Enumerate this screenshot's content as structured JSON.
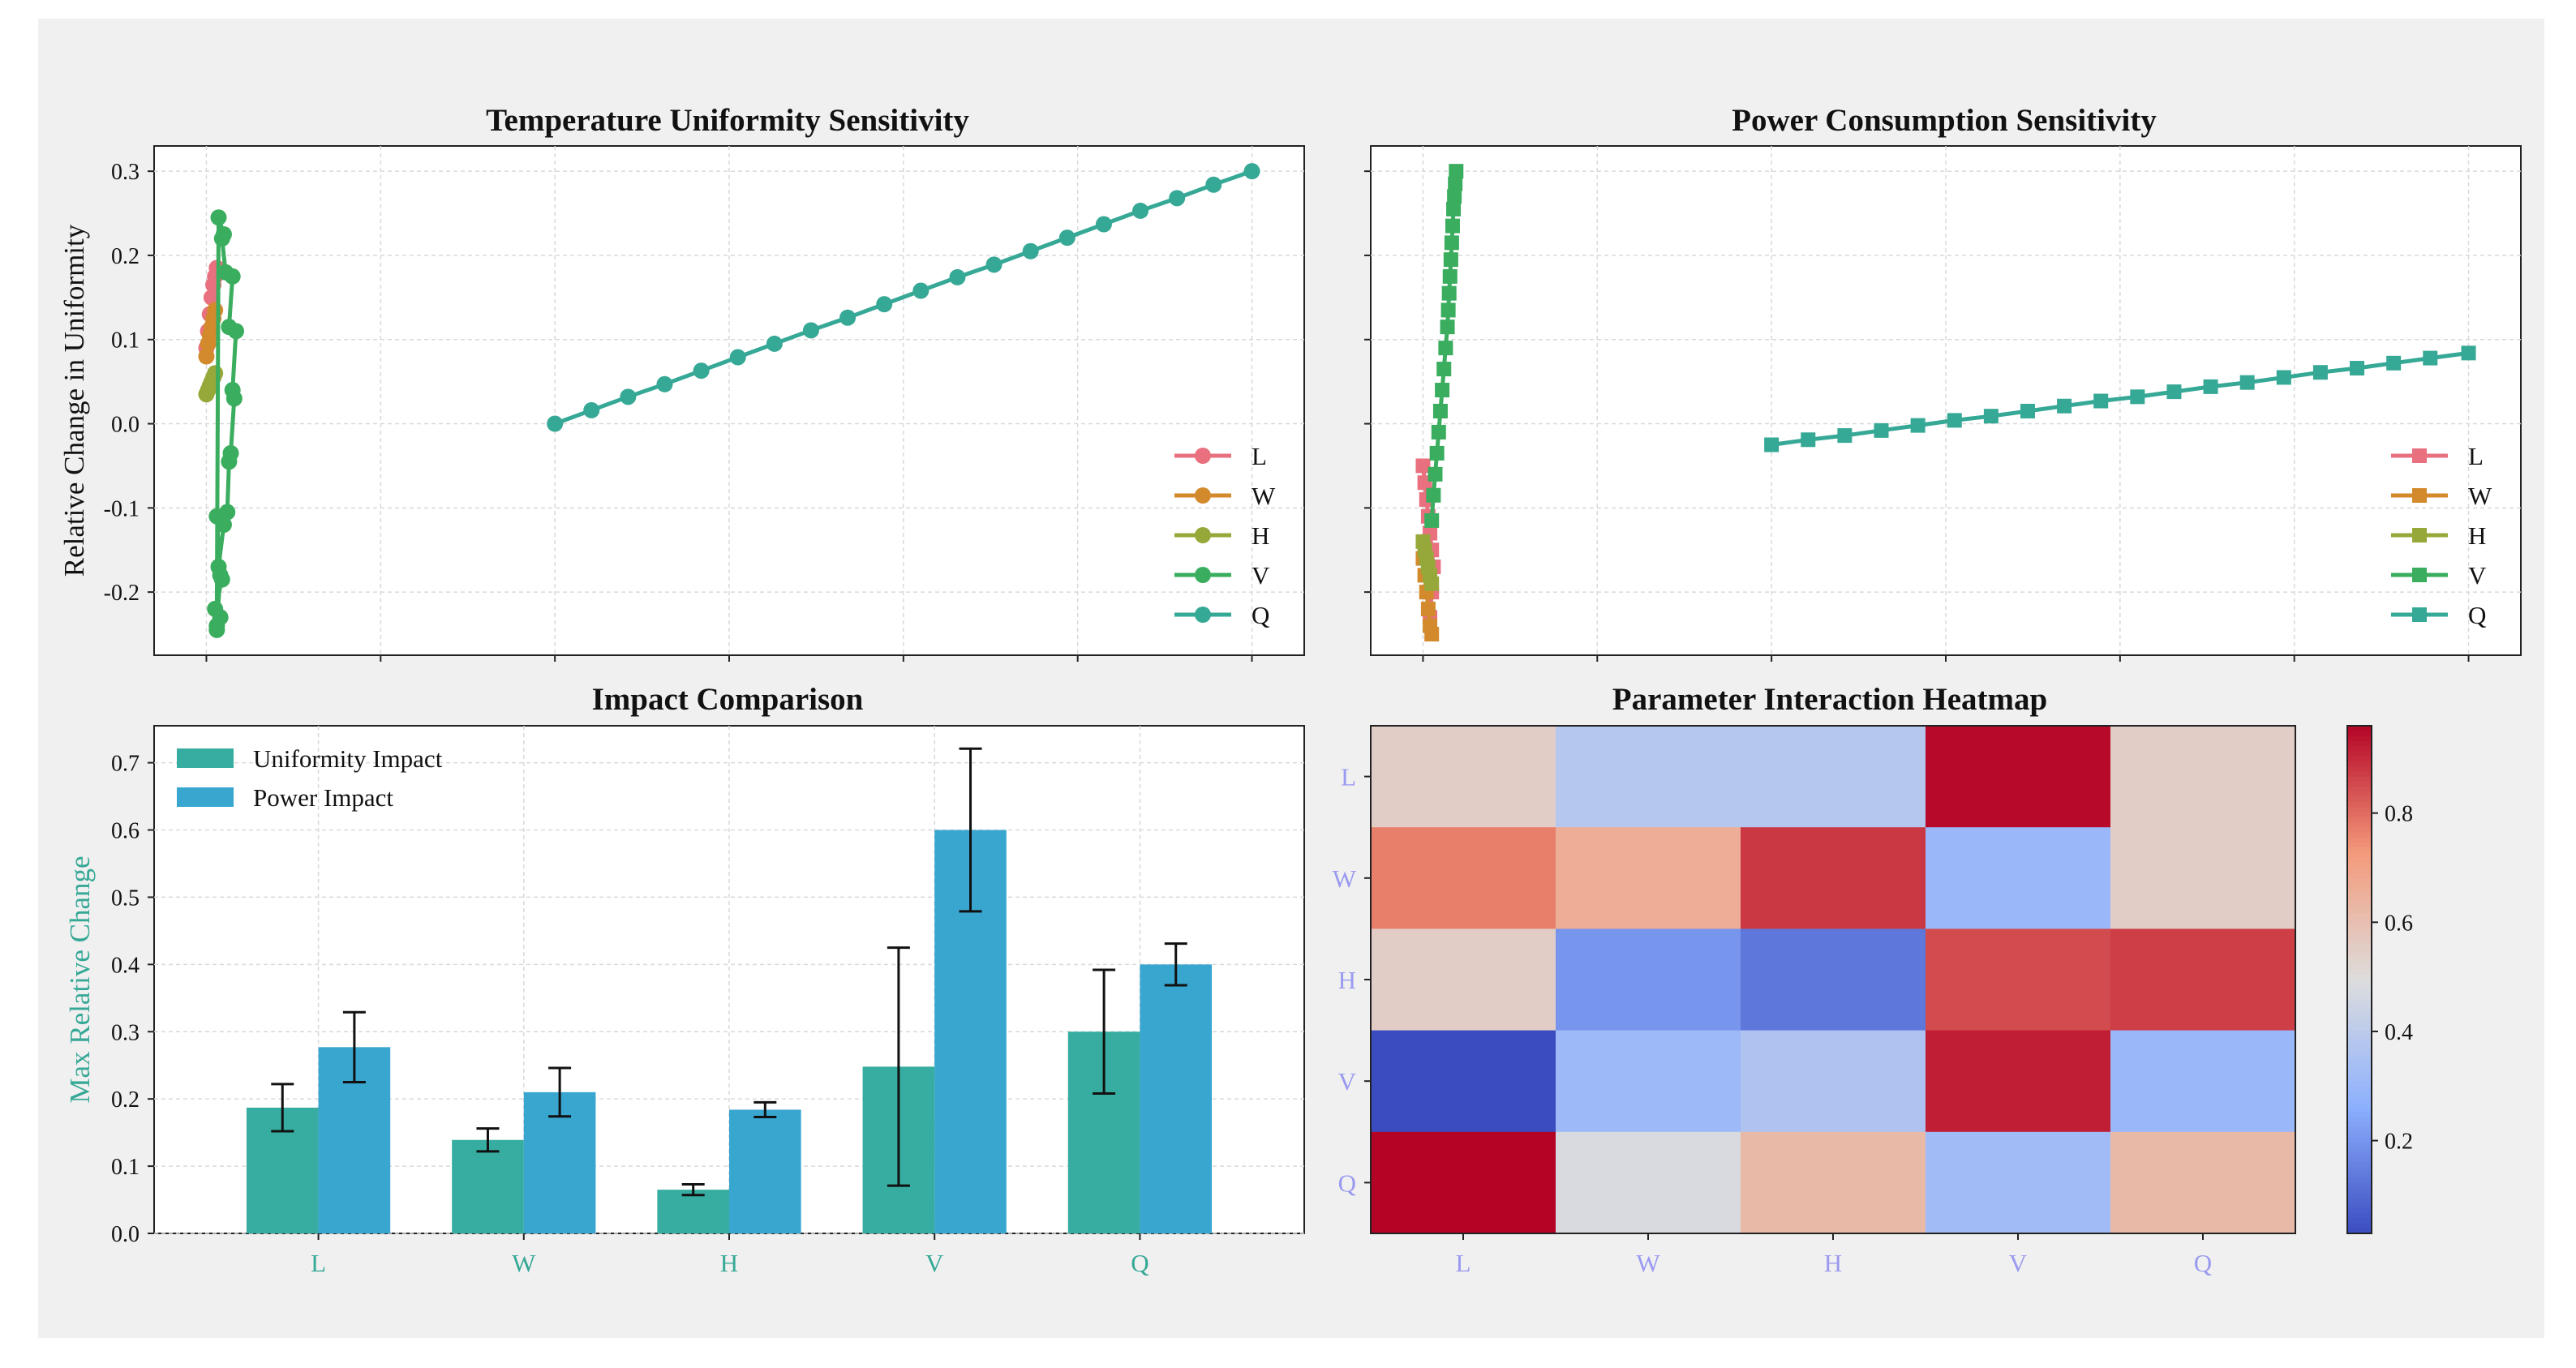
{
  "colors": {
    "background": "#f0f0f0",
    "grid": "#d9d9d9",
    "L": "#e8707f",
    "W": "#d38a2c",
    "H": "#97a83a",
    "V": "#3aad5e",
    "Q": "#36a896",
    "uniformity_bar": "#36ada0",
    "power_bar": "#39a6d0",
    "bar_axis_text": "#36a896",
    "heatmap_tick_text": "#9a9af0"
  },
  "chart_data": [
    {
      "type": "line",
      "title": "Temperature Uniformity Sensitivity",
      "xlabel": "",
      "ylabel": "Relative Change in Uniformity",
      "yticks": [
        "0.3",
        "0.2",
        "0.1",
        "0.0",
        "-0.1",
        "-0.2"
      ],
      "ytick_values": [
        0.3,
        0.2,
        0.1,
        0.0,
        -0.1,
        -0.2
      ],
      "xlim": [
        -0.3,
        6.3
      ],
      "ylim": [
        -0.275,
        0.33
      ],
      "marker": "circle",
      "legend_position": "lower-right",
      "legend": [
        "L",
        "W",
        "H",
        "V",
        "Q"
      ],
      "series": [
        {
          "name": "L",
          "color_key": "L",
          "x": [
            0.0,
            0.01,
            0.02,
            0.03,
            0.04,
            0.05,
            0.06
          ],
          "y": [
            0.09,
            0.11,
            0.13,
            0.15,
            0.165,
            0.175,
            0.185
          ]
        },
        {
          "name": "W",
          "color_key": "W",
          "x": [
            0.0,
            0.01,
            0.02,
            0.03,
            0.04,
            0.05
          ],
          "y": [
            0.08,
            0.095,
            0.105,
            0.115,
            0.125,
            0.135
          ]
        },
        {
          "name": "H",
          "color_key": "H",
          "x": [
            0.0,
            0.01,
            0.02,
            0.03,
            0.04,
            0.05
          ],
          "y": [
            0.035,
            0.04,
            0.045,
            0.05,
            0.055,
            0.06
          ]
        },
        {
          "name": "V",
          "color_key": "V",
          "x": [
            0.06,
            0.08,
            0.05,
            0.09,
            0.07,
            0.1,
            0.12,
            0.13,
            0.14,
            0.16,
            0.15,
            0.17,
            0.13,
            0.15,
            0.11,
            0.09,
            0.1,
            0.07,
            0.06,
            0.08,
            0.06
          ],
          "y": [
            -0.245,
            -0.23,
            -0.22,
            -0.185,
            -0.17,
            -0.12,
            -0.105,
            -0.045,
            -0.035,
            0.03,
            0.04,
            0.11,
            0.115,
            0.175,
            0.18,
            0.22,
            0.225,
            0.245,
            -0.24,
            -0.18,
            -0.11
          ]
        },
        {
          "name": "Q",
          "color_key": "Q",
          "x": [
            2.0,
            2.21,
            2.42,
            2.63,
            2.84,
            3.05,
            3.26,
            3.47,
            3.68,
            3.89,
            4.1,
            4.31,
            4.52,
            4.73,
            4.94,
            5.15,
            5.36,
            5.57,
            5.78,
            6.0
          ],
          "y": [
            0.0,
            0.016,
            0.032,
            0.047,
            0.063,
            0.079,
            0.095,
            0.111,
            0.126,
            0.142,
            0.158,
            0.174,
            0.189,
            0.205,
            0.221,
            0.237,
            0.253,
            0.268,
            0.284,
            0.3
          ]
        }
      ]
    },
    {
      "type": "line",
      "title": "Power Consumption Sensitivity",
      "xlabel": "",
      "ylabel": "",
      "xlim": [
        -0.3,
        6.3
      ],
      "ylim": [
        -0.275,
        0.33
      ],
      "marker": "square",
      "legend_position": "lower-right",
      "legend": [
        "L",
        "W",
        "H",
        "V",
        "Q"
      ],
      "series": [
        {
          "name": "L",
          "color_key": "L",
          "x": [
            0.0,
            0.01,
            0.02,
            0.03,
            0.04,
            0.05,
            0.06,
            0.05,
            0.04
          ],
          "y": [
            -0.05,
            -0.07,
            -0.09,
            -0.11,
            -0.13,
            -0.15,
            -0.17,
            -0.2,
            -0.23
          ]
        },
        {
          "name": "W",
          "color_key": "W",
          "x": [
            0.0,
            0.01,
            0.02,
            0.03,
            0.04,
            0.05
          ],
          "y": [
            -0.16,
            -0.18,
            -0.2,
            -0.22,
            -0.24,
            -0.25
          ]
        },
        {
          "name": "H",
          "color_key": "H",
          "x": [
            0.0,
            0.01,
            0.02,
            0.03,
            0.04,
            0.05
          ],
          "y": [
            -0.14,
            -0.15,
            -0.16,
            -0.17,
            -0.18,
            -0.19
          ]
        },
        {
          "name": "V",
          "color_key": "V",
          "x": [
            0.05,
            0.06,
            0.07,
            0.08,
            0.09,
            0.1,
            0.11,
            0.12,
            0.13,
            0.14,
            0.145,
            0.15,
            0.155,
            0.16,
            0.165,
            0.17,
            0.175,
            0.18,
            0.185,
            0.19
          ],
          "y": [
            -0.115,
            -0.085,
            -0.06,
            -0.035,
            -0.01,
            0.015,
            0.04,
            0.065,
            0.09,
            0.115,
            0.135,
            0.155,
            0.175,
            0.195,
            0.215,
            0.235,
            0.255,
            0.27,
            0.285,
            0.3
          ]
        },
        {
          "name": "Q",
          "color_key": "Q",
          "x": [
            2.0,
            2.21,
            2.42,
            2.63,
            2.84,
            3.05,
            3.26,
            3.47,
            3.68,
            3.89,
            4.1,
            4.31,
            4.52,
            4.73,
            4.94,
            5.15,
            5.36,
            5.57,
            5.78,
            6.0
          ],
          "y": [
            -0.025,
            -0.019,
            -0.014,
            -0.008,
            -0.002,
            0.004,
            0.009,
            0.015,
            0.021,
            0.027,
            0.032,
            0.038,
            0.044,
            0.049,
            0.055,
            0.061,
            0.066,
            0.072,
            0.078,
            0.084
          ]
        }
      ]
    },
    {
      "type": "bar",
      "title": "Impact Comparison",
      "xlabel": "",
      "ylabel": "Max Relative Change",
      "categories": [
        "L",
        "W",
        "H",
        "V",
        "Q"
      ],
      "yticks": [
        "0.0",
        "0.1",
        "0.2",
        "0.3",
        "0.4",
        "0.5",
        "0.6",
        "0.7"
      ],
      "ytick_values": [
        0,
        0.1,
        0.2,
        0.3,
        0.4,
        0.5,
        0.6,
        0.7
      ],
      "ylim": [
        0,
        0.755
      ],
      "legend_position": "top-left",
      "series": [
        {
          "name": "Uniformity Impact",
          "color_key": "uniformity_bar",
          "values": [
            0.187,
            0.139,
            0.065,
            0.248,
            0.3
          ],
          "errors": [
            0.035,
            0.017,
            0.008,
            0.177,
            0.092
          ]
        },
        {
          "name": "Power Impact",
          "color_key": "power_bar",
          "values": [
            0.277,
            0.21,
            0.184,
            0.6,
            0.4
          ],
          "errors": [
            0.052,
            0.036,
            0.011,
            0.121,
            0.031
          ]
        }
      ]
    },
    {
      "type": "heatmap",
      "title": "Parameter Interaction Heatmap",
      "x_labels": [
        "L",
        "W",
        "H",
        "V",
        "Q"
      ],
      "y_labels": [
        "L",
        "W",
        "H",
        "V",
        "Q"
      ],
      "values": [
        [
          0.55,
          0.38,
          0.38,
          0.95,
          0.55
        ],
        [
          0.77,
          0.66,
          0.88,
          0.3,
          0.55
        ],
        [
          0.55,
          0.2,
          0.13,
          0.85,
          0.87
        ],
        [
          0.03,
          0.31,
          0.36,
          0.92,
          0.3
        ],
        [
          0.96,
          0.48,
          0.62,
          0.32,
          0.62
        ]
      ],
      "colorbar_ticks": [
        "0.2",
        "0.4",
        "0.6",
        "0.8"
      ],
      "colorbar_tick_values": [
        0.2,
        0.4,
        0.6,
        0.8
      ],
      "vmin": 0.03,
      "vmax": 0.96,
      "colormap": "coolwarm"
    }
  ]
}
